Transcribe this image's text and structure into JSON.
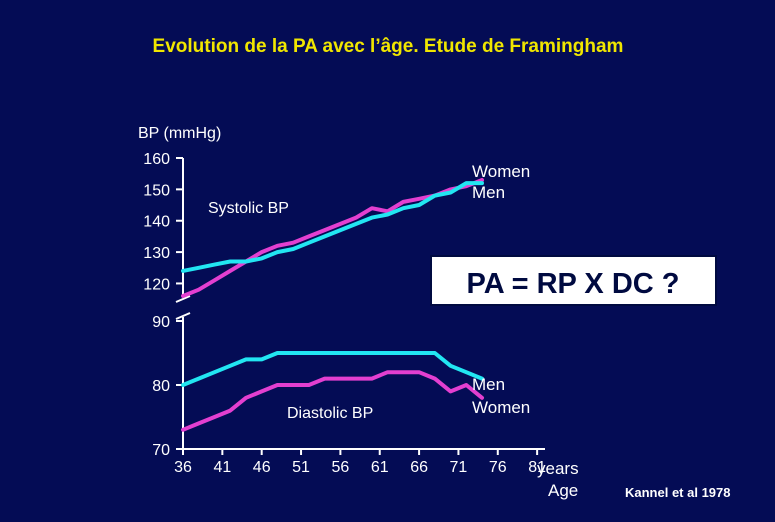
{
  "slide": {
    "title": "Evolution de la PA avec l’âge. Etude de Framingham",
    "equation": "PA = RP X DC ?",
    "citation": "Kannel et al 1978"
  },
  "colors": {
    "background": "#040c55",
    "title": "#f0e600",
    "text": "#ffffff",
    "men": "#22e6f2",
    "women": "#e33fd0",
    "box_bg": "#ffffff",
    "box_text": "#000a40"
  },
  "chart_data": {
    "type": "line",
    "ylabel": "BP (mmHg)",
    "xlabel": [
      "years",
      "Age"
    ],
    "x_ticks": [
      36,
      41,
      46,
      51,
      56,
      61,
      66,
      71,
      76,
      81
    ],
    "xlim": [
      36,
      82
    ],
    "axis_break": true,
    "y_upper": {
      "ticks": [
        120,
        130,
        140,
        150,
        160
      ],
      "range": [
        116,
        160
      ]
    },
    "y_lower": {
      "ticks": [
        70,
        80,
        90
      ],
      "range": [
        70,
        90
      ]
    },
    "panels": [
      {
        "label": "Systolic BP",
        "panel": "upper",
        "series": [
          {
            "name": "Women",
            "color_key": "women",
            "x": [
              36,
              38,
              40,
              42,
              44,
              46,
              48,
              50,
              52,
              54,
              56,
              58,
              60,
              62,
              64,
              66,
              68,
              70,
              72,
              74
            ],
            "y": [
              116,
              118,
              121,
              124,
              127,
              130,
              132,
              133,
              135,
              137,
              139,
              141,
              144,
              143,
              146,
              147,
              148,
              150,
              151,
              153
            ]
          },
          {
            "name": "Men",
            "color_key": "men",
            "x": [
              36,
              38,
              40,
              42,
              44,
              46,
              48,
              50,
              52,
              54,
              56,
              58,
              60,
              62,
              64,
              66,
              68,
              70,
              72,
              74
            ],
            "y": [
              124,
              125,
              126,
              127,
              127,
              128,
              130,
              131,
              133,
              135,
              137,
              139,
              141,
              142,
              144,
              145,
              148,
              149,
              152,
              152
            ]
          }
        ]
      },
      {
        "label": "Diastolic BP",
        "panel": "lower",
        "series": [
          {
            "name": "Men",
            "color_key": "men",
            "x": [
              36,
              38,
              40,
              42,
              44,
              46,
              48,
              50,
              52,
              54,
              56,
              58,
              60,
              62,
              64,
              66,
              68,
              70,
              72,
              74
            ],
            "y": [
              80,
              81,
              82,
              83,
              84,
              84,
              85,
              85,
              85,
              85,
              85,
              85,
              85,
              85,
              85,
              85,
              85,
              83,
              82,
              81
            ]
          },
          {
            "name": "Women",
            "color_key": "women",
            "x": [
              36,
              38,
              40,
              42,
              44,
              46,
              48,
              50,
              52,
              54,
              56,
              58,
              60,
              62,
              64,
              66,
              68,
              70,
              72,
              74
            ],
            "y": [
              73,
              74,
              75,
              76,
              78,
              79,
              80,
              80,
              80,
              81,
              81,
              81,
              81,
              82,
              82,
              82,
              81,
              79,
              80,
              78
            ]
          }
        ]
      }
    ],
    "legend_labels": {
      "systolic": [
        "Women",
        "Men"
      ],
      "diastolic": [
        "Men",
        "Women"
      ]
    }
  }
}
